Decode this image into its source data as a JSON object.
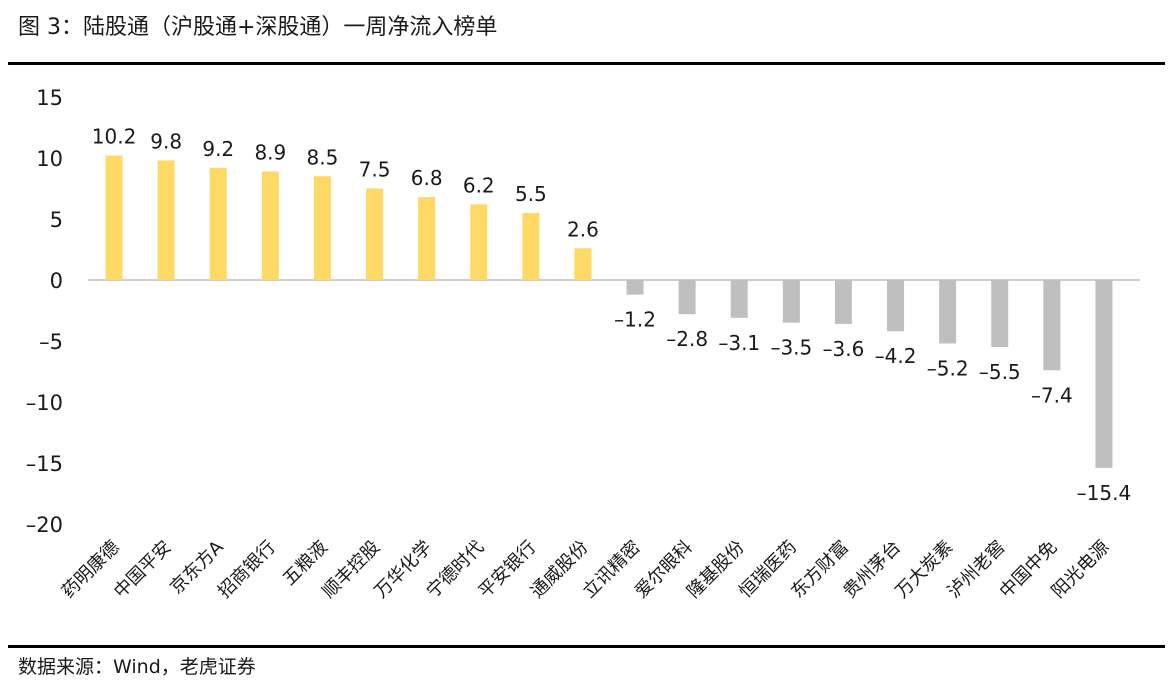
{
  "figure": {
    "title": "图 3：陆股通（沪股通+深股通）一周净流入榜单",
    "source": "数据来源：Wind，老虎证券"
  },
  "colors": {
    "positive": "#FFD966",
    "negative": "#BFBFBF",
    "axis": "#BFBFBF",
    "text": "#1a1a1a"
  },
  "chart_data": {
    "type": "bar",
    "title": "",
    "xlabel": "",
    "ylabel": "",
    "ylim": [
      -20,
      15
    ],
    "yticks": [
      15,
      10,
      5,
      0,
      -5,
      -10,
      -15,
      -20
    ],
    "ytick_labels": [
      "15",
      "10",
      "5",
      "0",
      "–5",
      "–10",
      "–15",
      "–20"
    ],
    "grid": false,
    "legend": "none",
    "categories": [
      "药明康德",
      "中国平安",
      "京东方A",
      "招商银行",
      "五粮液",
      "顺丰控股",
      "万华化学",
      "宁德时代",
      "平安银行",
      "通威股份",
      "立讯精密",
      "爱尔眼科",
      "隆基股份",
      "恒瑞医药",
      "东方财富",
      "贵州茅台",
      "万大炭素",
      "泸州老窖",
      "中国中免",
      "阳光电源"
    ],
    "values": [
      10.2,
      9.8,
      9.2,
      8.9,
      8.5,
      7.5,
      6.8,
      6.2,
      5.5,
      2.6,
      -1.2,
      -2.8,
      -3.1,
      -3.5,
      -3.6,
      -4.2,
      -5.2,
      -5.5,
      -7.4,
      -15.4
    ],
    "data_labels": [
      "10.2",
      "9.8",
      "9.2",
      "8.9",
      "8.5",
      "7.5",
      "6.8",
      "6.2",
      "5.5",
      "2.6",
      "–1.2",
      "–2.8",
      "–3.1",
      "–3.5",
      "–3.6",
      "–4.2",
      "–5.2",
      "–5.5",
      "–7.4",
      "–15.4"
    ]
  }
}
